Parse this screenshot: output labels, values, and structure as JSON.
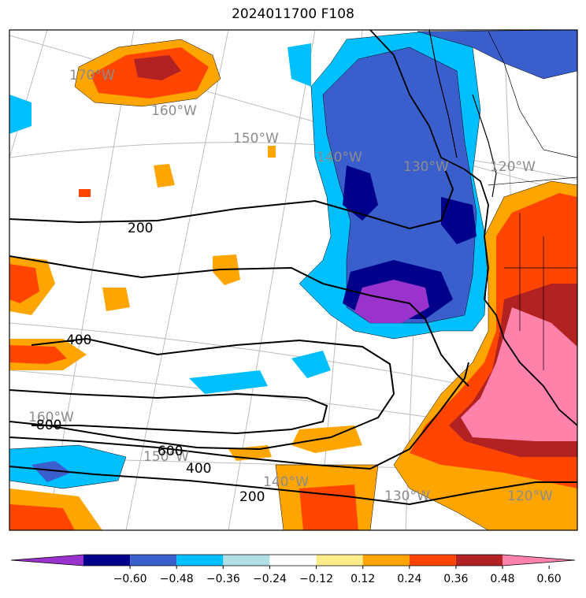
{
  "title": "2024011700 F108",
  "colorbar": {
    "colors": [
      "#9a32cd",
      "#00008b",
      "#3a5fcd",
      "#00bfff",
      "#b0e0e6",
      "#ffffff",
      "#ffec8b",
      "#ffa500",
      "#ff4500",
      "#b22222",
      "#ff82ab"
    ],
    "ticks": [
      "−0.60",
      "−0.48",
      "−0.36",
      "−0.24",
      "−0.12",
      "0.12",
      "0.24",
      "0.36",
      "0.48",
      "0.60"
    ]
  },
  "longitude_labels": [
    "170°W",
    "160°W",
    "150°W",
    "140°W",
    "130°W",
    "120°W",
    "160°W",
    "150°W",
    "140°W",
    "130°W",
    "120°W"
  ],
  "contour_labels": [
    "200",
    "400",
    "800",
    "600",
    "400",
    "200"
  ]
}
